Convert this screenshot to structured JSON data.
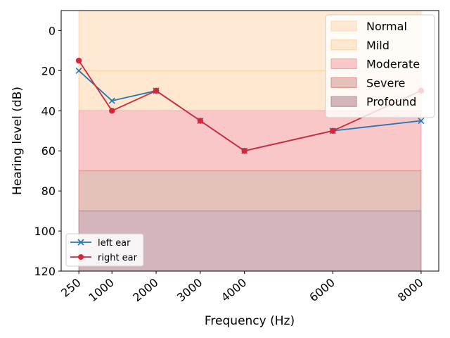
{
  "chart_data": {
    "type": "line",
    "xlabel": "Frequency (Hz)",
    "ylabel": "Hearing level (dB)",
    "x": [
      250,
      1000,
      2000,
      3000,
      4000,
      6000,
      8000
    ],
    "x_tick_labels": [
      "250",
      "1000",
      "2000",
      "3000",
      "4000",
      "6000",
      "8000"
    ],
    "xlim": [
      -150,
      8400
    ],
    "ylim": [
      120,
      -10
    ],
    "y_inverted": true,
    "y_ticks": [
      0,
      20,
      40,
      60,
      80,
      100,
      120
    ],
    "series": [
      {
        "name": "left ear",
        "marker": "x",
        "color": "#1f77b4",
        "values": [
          20,
          35,
          30,
          45,
          60,
          50,
          45
        ]
      },
      {
        "name": "right ear",
        "marker": "o",
        "color": "#d62738",
        "values": [
          15,
          40,
          30,
          45,
          60,
          50,
          30
        ]
      }
    ],
    "bands": [
      {
        "name": "Normal",
        "from": -10,
        "to": 20,
        "fill": "#ffe9d4",
        "edge": "#ffd9b0"
      },
      {
        "name": "Mild",
        "from": 20,
        "to": 40,
        "fill": "#ffe7d0",
        "edge": "#ffcfa0"
      },
      {
        "name": "Moderate",
        "from": 40,
        "to": 70,
        "fill": "#f9c7c8",
        "edge": "#f4a4a4"
      },
      {
        "name": "Severe",
        "from": 70,
        "to": 90,
        "fill": "#e5c1bb",
        "edge": "#d89088"
      },
      {
        "name": "Profound",
        "from": 90,
        "to": 120,
        "fill": "#d4b5bb",
        "edge": "#b48890"
      }
    ],
    "band_legend_placement": "top-right",
    "series_legend_placement": "lower-left",
    "grid": false
  }
}
